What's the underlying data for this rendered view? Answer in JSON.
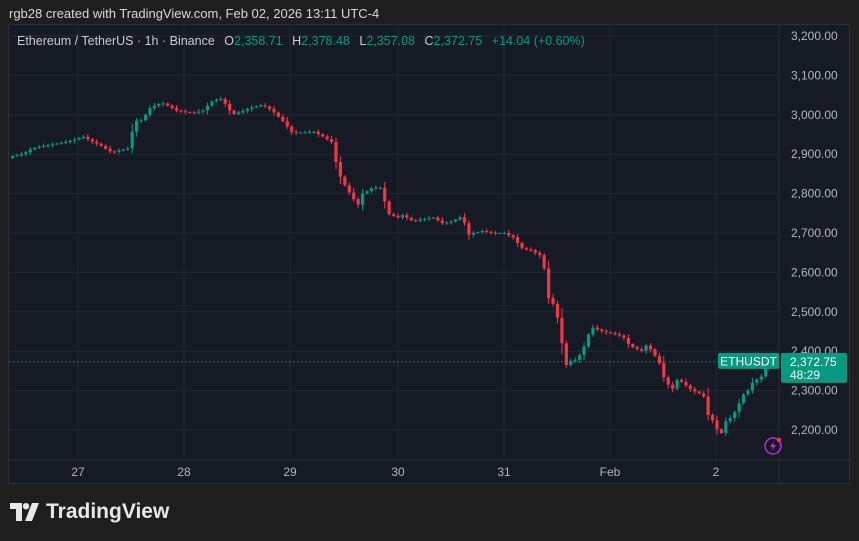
{
  "credit": "rgb28 created with TradingView.com, Feb 02, 2026 13:11 UTC-4",
  "legend": {
    "symbol": "Ethereum / TetherUS · 1h · Binance",
    "o_label": "O",
    "o": "2,358.71",
    "h_label": "H",
    "h": "2,378.48",
    "l_label": "L",
    "l": "2,357.08",
    "c_label": "C",
    "c": "2,372.75",
    "change": "+14.04 (+0.60%)"
  },
  "price_tag": {
    "symbol": "ETHUSDT",
    "price": "2,372.75",
    "countdown": "48:29"
  },
  "logo": {
    "text": "TradingView"
  },
  "colors": {
    "up": "#089981",
    "down": "#f23645",
    "background": "#161a25",
    "grid": "#242835",
    "accent": "#b032d6"
  },
  "icons": {
    "alert": "lightning-bolt-icon"
  },
  "chart_data": {
    "type": "candlestick",
    "interval": "1h",
    "ylim": [
      2130,
      3240
    ],
    "yticks": [
      2200,
      2300,
      2400,
      2500,
      2600,
      2700,
      2800,
      2900,
      3000,
      3100,
      3200
    ],
    "ytick_labels": [
      "2,200.00",
      "2,300.00",
      "2,400.00",
      "2,500.00",
      "2,600.00",
      "2,700.00",
      "2,800.00",
      "2,900.00",
      "3,000.00",
      "3,100.00",
      "3,200.00"
    ],
    "xtick_labels": [
      "27",
      "28",
      "29",
      "30",
      "31",
      "Feb",
      "2"
    ],
    "grid": true,
    "first_open": 2890,
    "close": [
      2895,
      2897,
      2900,
      2905,
      2912,
      2916,
      2919,
      2921,
      2923,
      2925,
      2927,
      2929,
      2931,
      2934,
      2937,
      2941,
      2944,
      2938,
      2932,
      2927,
      2921,
      2914,
      2907,
      2906,
      2909,
      2912,
      2915,
      2957,
      2985,
      2986,
      3000,
      3017,
      3023,
      3027,
      3029,
      3023,
      3017,
      3011,
      3009,
      3007,
      3006,
      3005,
      3008,
      3011,
      3023,
      3034,
      3038,
      3040,
      3028,
      3011,
      3002,
      3006,
      3010,
      3015,
      3019,
      3022,
      3024,
      3021,
      3015,
      3006,
      2995,
      2984,
      2970,
      2957,
      2955,
      2955,
      2956,
      2957,
      2957,
      2951,
      2945,
      2938,
      2931,
      2880,
      2843,
      2821,
      2803,
      2786,
      2772,
      2800,
      2806,
      2813,
      2815,
      2815,
      2780,
      2748,
      2744,
      2740,
      2745,
      2739,
      2732,
      2731,
      2734,
      2736,
      2738,
      2739,
      2732,
      2725,
      2727,
      2729,
      2734,
      2740,
      2725,
      2696,
      2700,
      2702,
      2705,
      2703,
      2701,
      2700,
      2700,
      2700,
      2694,
      2689,
      2675,
      2661,
      2658,
      2656,
      2650,
      2644,
      2610,
      2535,
      2520,
      2485,
      2420,
      2365,
      2375,
      2378,
      2390,
      2412,
      2442,
      2460,
      2455,
      2451,
      2448,
      2446,
      2443,
      2440,
      2434,
      2418,
      2410,
      2405,
      2401,
      2414,
      2405,
      2388,
      2370,
      2334,
      2315,
      2305,
      2327,
      2322,
      2313,
      2304,
      2298,
      2293,
      2285,
      2238,
      2225,
      2202,
      2192,
      2222,
      2230,
      2245,
      2268,
      2290,
      2300,
      2320,
      2328,
      2336,
      2358.71,
      2372.75
    ],
    "last_high": 2378.48,
    "last_low": 2357.08,
    "last_price": 2372.75
  }
}
